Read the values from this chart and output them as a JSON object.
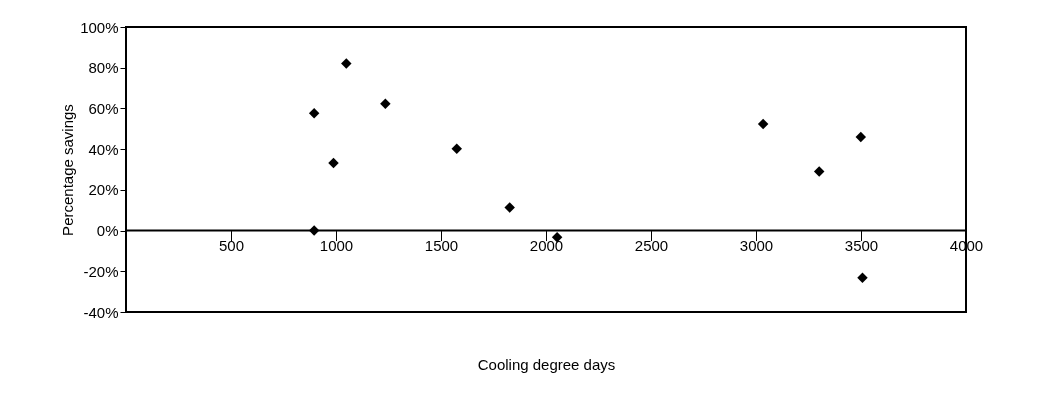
{
  "chart_data": {
    "type": "scatter",
    "xlabel": "Cooling degree days",
    "ylabel": "Percentage savings",
    "x": [
      896,
      896,
      988,
      1049,
      1235,
      1575,
      1827,
      2053,
      3034,
      3301,
      3499,
      3507
    ],
    "series": [
      {
        "color": "#000000",
        "values": [
          57.6,
          0,
          33.2,
          82.1,
          62.3,
          40.2,
          11.3,
          -3.3,
          52.3,
          29,
          46,
          -23.2
        ]
      }
    ],
    "xlim": [
      0,
      4000
    ],
    "xticks": [
      500,
      1000,
      1500,
      2000,
      2500,
      3000,
      3500,
      4000
    ],
    "ylim": [
      -40,
      100
    ],
    "yticks": [
      {
        "value": -40,
        "label": "-40%"
      },
      {
        "value": -20,
        "label": "-20%"
      },
      {
        "value": 0,
        "label": "0%"
      },
      {
        "value": 20,
        "label": "20%"
      },
      {
        "value": 40,
        "label": "40%"
      },
      {
        "value": 60,
        "label": "60%"
      },
      {
        "value": 80,
        "label": "80%"
      },
      {
        "value": 100,
        "label": "100%"
      }
    ],
    "marker": "diamond",
    "grid": false
  }
}
